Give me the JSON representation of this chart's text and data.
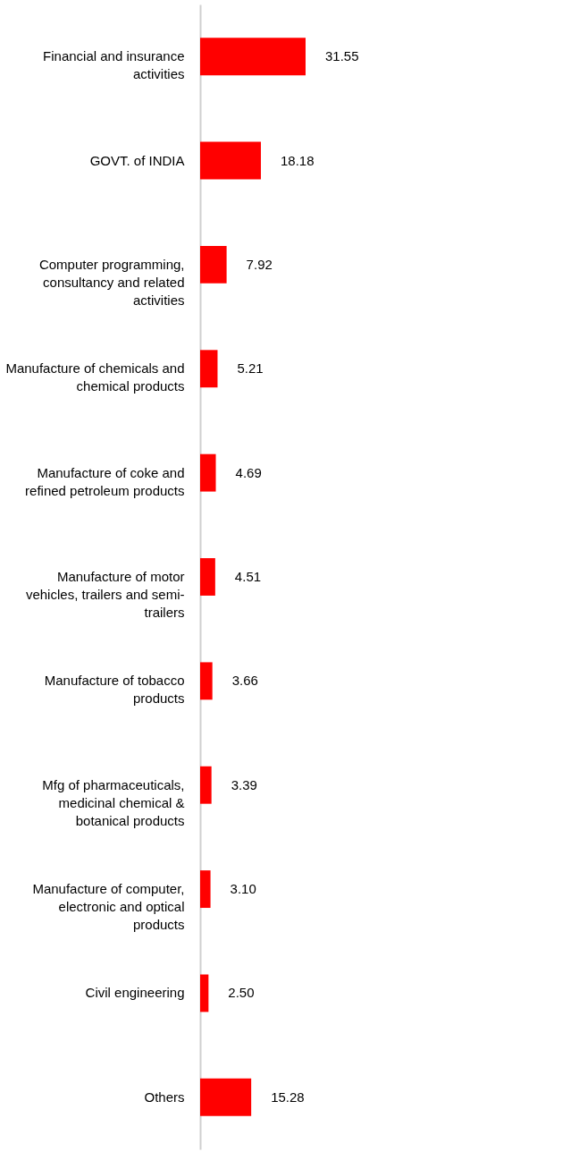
{
  "chart_data": {
    "type": "bar",
    "orientation": "horizontal",
    "tick_labels": "y",
    "value_labels": [
      "31.55",
      "18.18",
      "7.92",
      "5.21",
      "4.69",
      "4.51",
      "3.66",
      "3.39",
      "3.10",
      "2.50",
      "15.28"
    ],
    "color": "#ff0000",
    "categories": [
      "Financial and insurance activities",
      "GOVT. of INDIA",
      "Computer programming, consultancy and related activities",
      "Manufacture of chemicals and chemical products",
      "Manufacture of coke and refined petroleum products",
      "Manufacture of motor vehicles, trailers and semi-trailers",
      "Manufacture of tobacco products",
      "Mfg of pharmaceuticals, medicinal chemical & botanical products",
      "Manufacture of computer, electronic and optical products",
      "Civil engineering",
      "Others"
    ],
    "values": [
      31.55,
      18.18,
      7.92,
      5.21,
      4.69,
      4.51,
      3.66,
      3.39,
      3.1,
      2.5,
      15.28
    ]
  }
}
